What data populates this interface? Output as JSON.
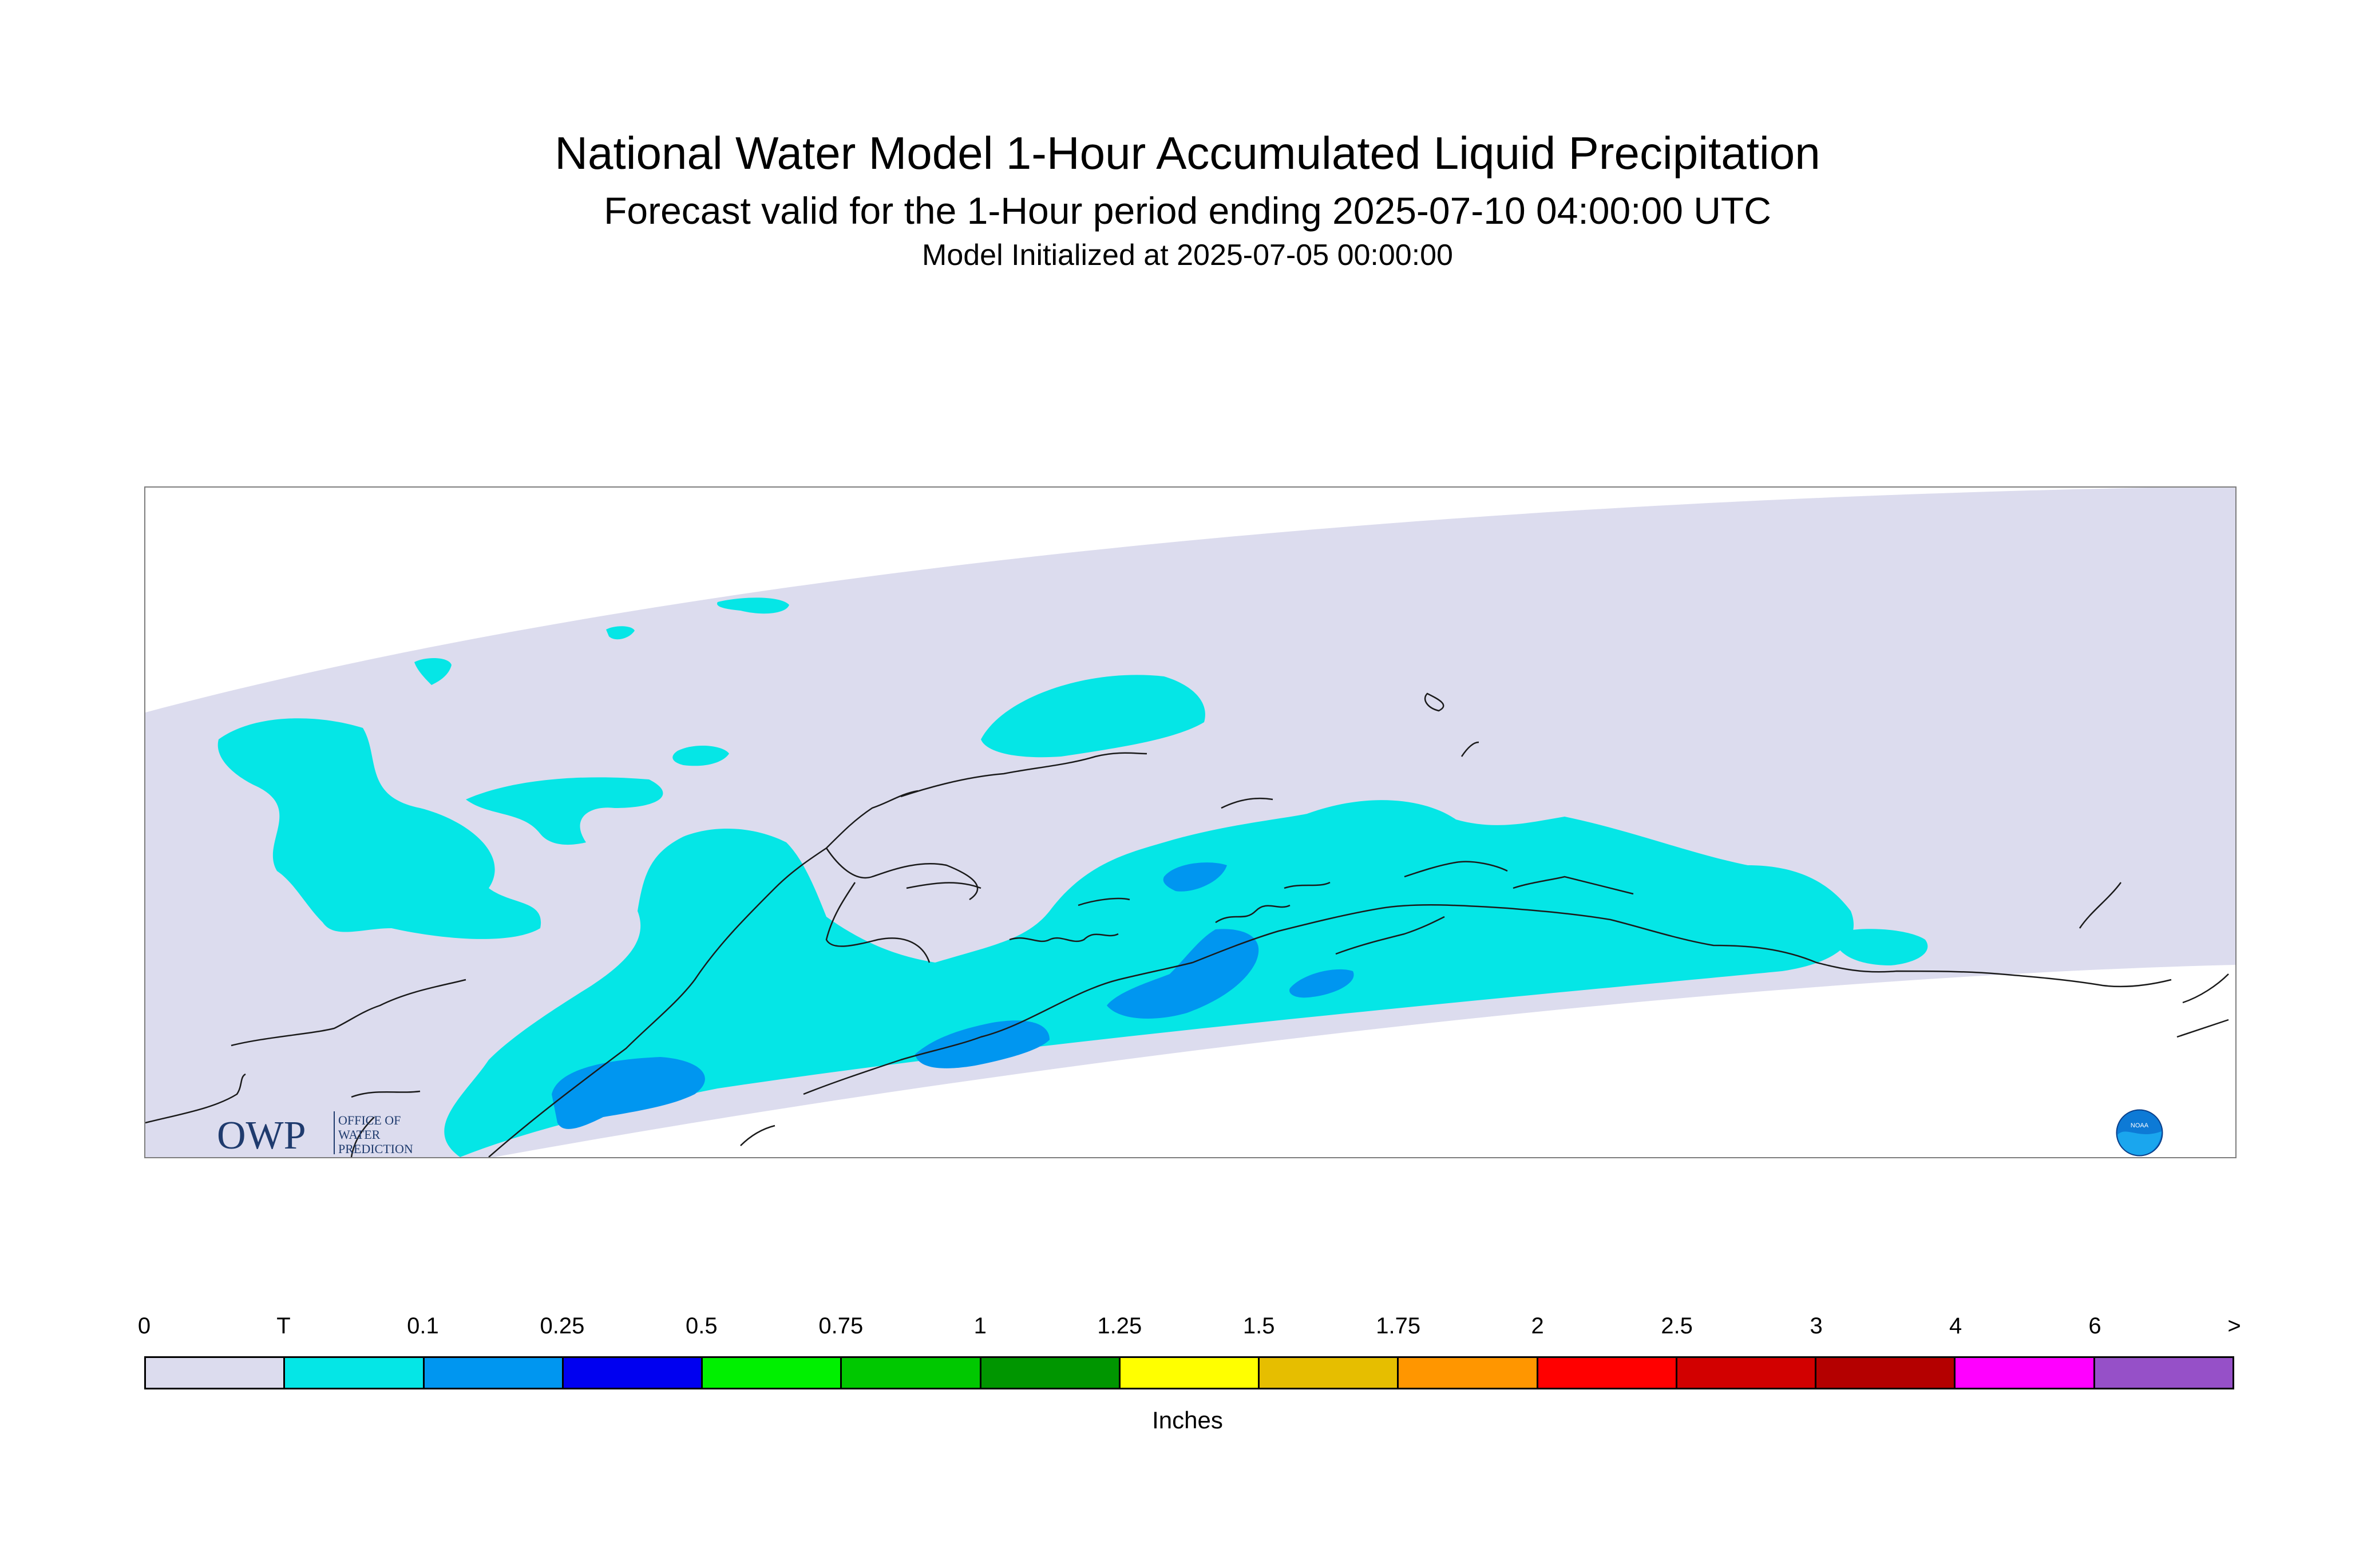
{
  "title": "National Water Model 1-Hour Accumulated Liquid Precipitation",
  "subtitle": "Forecast valid for the 1-Hour period ending 2025-07-10 04:00:00 UTC",
  "init_line": "Model Initialized at 2025-07-05 00:00:00",
  "legend": {
    "unit_label": "Inches",
    "tick_labels": [
      "0",
      "T",
      "0.1",
      "0.25",
      "0.5",
      "0.75",
      "1",
      "1.25",
      "1.5",
      "1.75",
      "2",
      "2.5",
      "3",
      "4",
      "6",
      ">"
    ],
    "colors": [
      "#dcdcee",
      "#05e6e6",
      "#0096f0",
      "#0000f0",
      "#00f000",
      "#00c800",
      "#009600",
      "#ffff00",
      "#e6be00",
      "#ff9600",
      "#ff0000",
      "#d20000",
      "#b40000",
      "#ff00ff",
      "#9650c8"
    ]
  },
  "logos": {
    "owp_letters": "OWP",
    "owp_line1": "OFFICE OF",
    "owp_line2": "WATER",
    "owp_line3": "PREDICTION",
    "noaa_text": "NOAA"
  },
  "map": {
    "domain_color": "#dcdcee",
    "trace_color": "#05e6e6",
    "light_color": "#0096f0",
    "coast_color": "#1a1a1a"
  }
}
